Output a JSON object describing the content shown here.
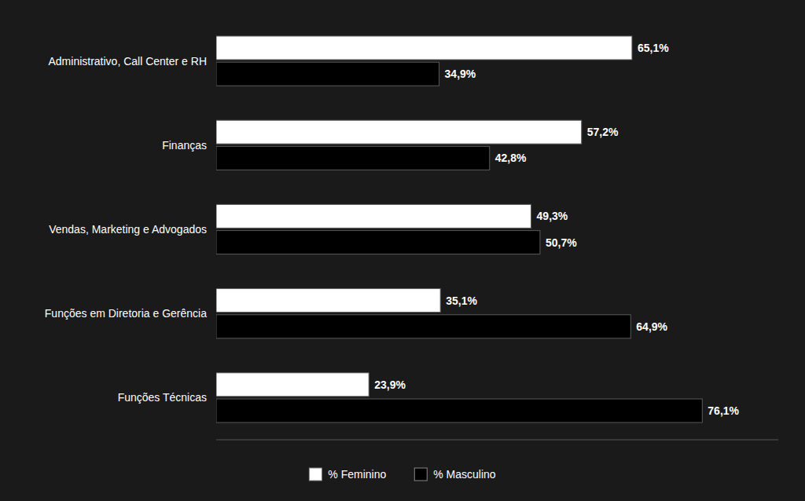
{
  "chart_data": {
    "type": "bar",
    "orientation": "horizontal",
    "categories": [
      "Administrativo, Call Center e RH",
      "Finanças",
      "Vendas, Marketing e Advogados",
      "Funções em Diretoria e Gerência",
      "Funções Técnicas"
    ],
    "series": [
      {
        "name": "% Feminino",
        "color": "#ffffff",
        "values": [
          65.1,
          57.2,
          49.3,
          35.1,
          23.9
        ],
        "value_labels": [
          "65,1%",
          "57,2%",
          "49,3%",
          "35,1%",
          "23,9%"
        ]
      },
      {
        "name": "% Masculino",
        "color": "#000000",
        "values": [
          34.9,
          42.8,
          50.7,
          64.9,
          76.1
        ],
        "value_labels": [
          "34,9%",
          "42,8%",
          "50,7%",
          "64,9%",
          "76,1%"
        ]
      }
    ],
    "xlim": [
      0,
      88
    ],
    "data_labels": true,
    "tick_labels": "y",
    "legend": "bottom",
    "grid": false
  }
}
